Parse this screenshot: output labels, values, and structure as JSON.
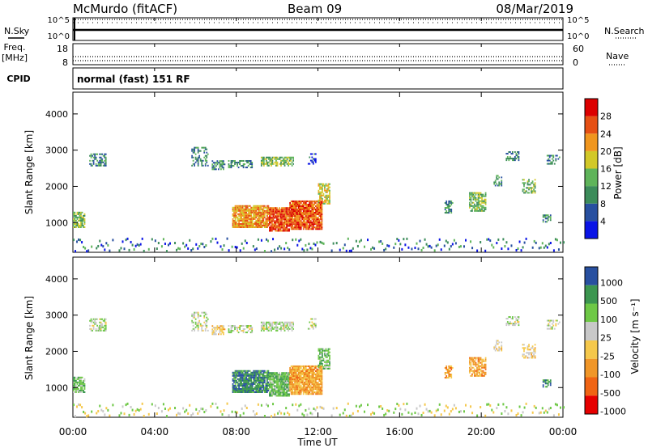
{
  "header": {
    "station": "McMurdo (fitACF)",
    "beam": "Beam 09",
    "date": "08/Mar/2019"
  },
  "left_labels": {
    "nsky": "N.Sky",
    "freq": "Freq.",
    "freq_unit": "[MHz]",
    "cpid": "CPID"
  },
  "right_labels": {
    "nsearch": "N.Search",
    "nave": "Nave"
  },
  "top_panels": {
    "noise_ticks": [
      "10^5",
      "10^0"
    ],
    "freq_ticks": [
      "18",
      "8"
    ],
    "nave_ticks": [
      "60",
      "0"
    ]
  },
  "cpid_text": "normal (fast) 151 RF",
  "colors": {
    "power": [
      "#0a14e6",
      "#2850a0",
      "#3c8c5a",
      "#5fb45a",
      "#d2c828",
      "#f0961e",
      "#e65014",
      "#dc0000"
    ],
    "velocity": [
      "#e60000",
      "#f06414",
      "#f09628",
      "#f5c84b",
      "#c8c8c8",
      "#6ec846",
      "#3c9650",
      "#2850a0"
    ]
  },
  "chart_data": [
    {
      "type": "heatmap",
      "title": "Power",
      "xlabel": "Time UT",
      "ylabel": "Slant Range [km]",
      "x_ticks": [
        "00:00",
        "04:00",
        "08:00",
        "12:00",
        "16:00",
        "20:00",
        "00:00"
      ],
      "y_ticks": [
        1000,
        2000,
        3000,
        4000
      ],
      "ylim": [
        180,
        4600
      ],
      "colorbar": {
        "label": "Power [dB]",
        "ticks": [
          4,
          8,
          12,
          16,
          20,
          24,
          28
        ],
        "range": [
          0,
          32
        ]
      }
    },
    {
      "type": "heatmap",
      "title": "Velocity",
      "xlabel": "Time UT",
      "ylabel": "Slant Range [km]",
      "x_ticks": [
        "00:00",
        "04:00",
        "08:00",
        "12:00",
        "16:00",
        "20:00",
        "00:00"
      ],
      "y_ticks": [
        1000,
        2000,
        3000,
        4000
      ],
      "ylim": [
        180,
        4600
      ],
      "colorbar": {
        "label": "Velocity [m s⁻¹]",
        "ticks": [
          "1000",
          "500",
          "100",
          "25",
          "-25",
          "-100",
          "-500",
          "-1000"
        ]
      }
    }
  ]
}
